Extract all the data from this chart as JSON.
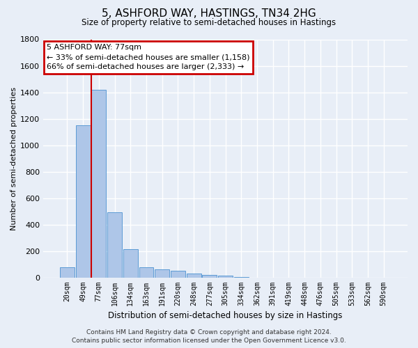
{
  "title": "5, ASHFORD WAY, HASTINGS, TN34 2HG",
  "subtitle": "Size of property relative to semi-detached houses in Hastings",
  "xlabel": "Distribution of semi-detached houses by size in Hastings",
  "ylabel": "Number of semi-detached properties",
  "bar_labels": [
    "20sqm",
    "49sqm",
    "77sqm",
    "106sqm",
    "134sqm",
    "163sqm",
    "191sqm",
    "220sqm",
    "248sqm",
    "277sqm",
    "305sqm",
    "334sqm",
    "362sqm",
    "391sqm",
    "419sqm",
    "448sqm",
    "476sqm",
    "505sqm",
    "533sqm",
    "562sqm",
    "590sqm"
  ],
  "bar_values": [
    75,
    1150,
    1420,
    490,
    215,
    75,
    60,
    50,
    30,
    20,
    15,
    5,
    0,
    0,
    0,
    0,
    0,
    0,
    0,
    0,
    0
  ],
  "bar_color": "#aec6e8",
  "bar_edge_color": "#5b9bd5",
  "vline_color": "#cc0000",
  "ylim": [
    0,
    1800
  ],
  "yticks": [
    0,
    200,
    400,
    600,
    800,
    1000,
    1200,
    1400,
    1600,
    1800
  ],
  "annotation_title": "5 ASHFORD WAY: 77sqm",
  "annotation_line1": "← 33% of semi-detached houses are smaller (1,158)",
  "annotation_line2": "66% of semi-detached houses are larger (2,333) →",
  "annotation_box_color": "#ffffff",
  "annotation_box_edge": "#cc0000",
  "footer_line1": "Contains HM Land Registry data © Crown copyright and database right 2024.",
  "footer_line2": "Contains public sector information licensed under the Open Government Licence v3.0.",
  "bg_color": "#e8eef7",
  "plot_bg_color": "#e8eef7",
  "grid_color": "#ffffff"
}
